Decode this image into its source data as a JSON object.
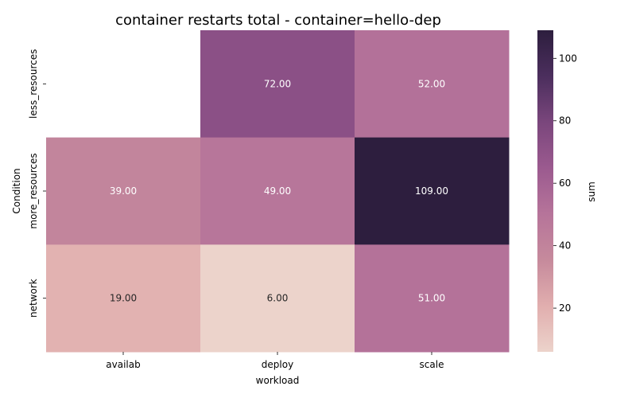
{
  "chart_data": {
    "type": "heatmap",
    "title": "container restarts total - container=hello-dep",
    "xlabel": "workload",
    "ylabel": "Condition",
    "x_categories": [
      "availab",
      "deploy",
      "scale"
    ],
    "y_categories": [
      "less_resources",
      "more_resources",
      "network"
    ],
    "values": [
      [
        null,
        72.0,
        52.0
      ],
      [
        39.0,
        49.0,
        109.0
      ],
      [
        19.0,
        6.0,
        51.0
      ]
    ],
    "value_labels": [
      [
        "",
        "72.00",
        "52.00"
      ],
      [
        "39.00",
        "49.00",
        "109.00"
      ],
      [
        "19.00",
        "6.00",
        "51.00"
      ]
    ],
    "colorbar": {
      "label": "sum",
      "min": 6.0,
      "max": 109.0,
      "ticks": [
        20,
        40,
        60,
        80,
        100
      ],
      "colormap": [
        "#ecd3cb",
        "#e1aeae",
        "#c68a9c",
        "#b6749a",
        "#9b5a8f",
        "#7a467c",
        "#4b2e5d",
        "#2d1e3e"
      ]
    },
    "legend": "none",
    "grid": false
  }
}
